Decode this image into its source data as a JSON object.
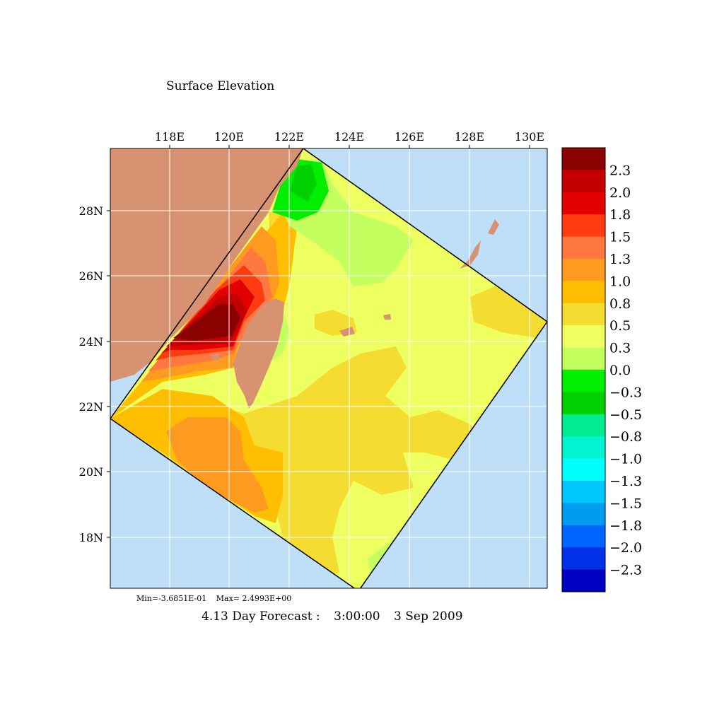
{
  "title": "Surface Elevation",
  "lon_labels": [
    "118E",
    "120E",
    "122E",
    "124E",
    "126E",
    "128E",
    "130E"
  ],
  "lat_labels": [
    "28N",
    "26N",
    "24N",
    "22N",
    "20N",
    "18N"
  ],
  "colorbar": {
    "labels": [
      "2.3",
      "2.0",
      "1.8",
      "1.5",
      "1.3",
      "1.0",
      "0.8",
      "0.5",
      "0.3",
      "0.0",
      "−0.3",
      "−0.5",
      "−0.8",
      "−1.0",
      "−1.3",
      "−1.5",
      "−1.8",
      "−2.0",
      "−2.3"
    ],
    "colors": [
      "#8b0000",
      "#c40000",
      "#e30000",
      "#ff3c10",
      "#ff7840",
      "#ff9a20",
      "#ffbe00",
      "#f5dc30",
      "#eeff60",
      "#c4ff60",
      "#00ee00",
      "#00d000",
      "#00ec90",
      "#00f4d0",
      "#00ffff",
      "#00c8ff",
      "#009cf0",
      "#0064ff",
      "#0030e8",
      "#0000c0"
    ]
  },
  "min_label": "Min=-3.6851E-01",
  "max_label": "Max= 2.4993E+00",
  "forecast": {
    "lead": "4.13 Day Forecast :",
    "time": "3:00:00",
    "date": "3 Sep 2009"
  },
  "colors": {
    "land": "#d69271",
    "ocean_outside": "#bfdff9",
    "grid": "#ffffff",
    "frame": "#000000"
  }
}
